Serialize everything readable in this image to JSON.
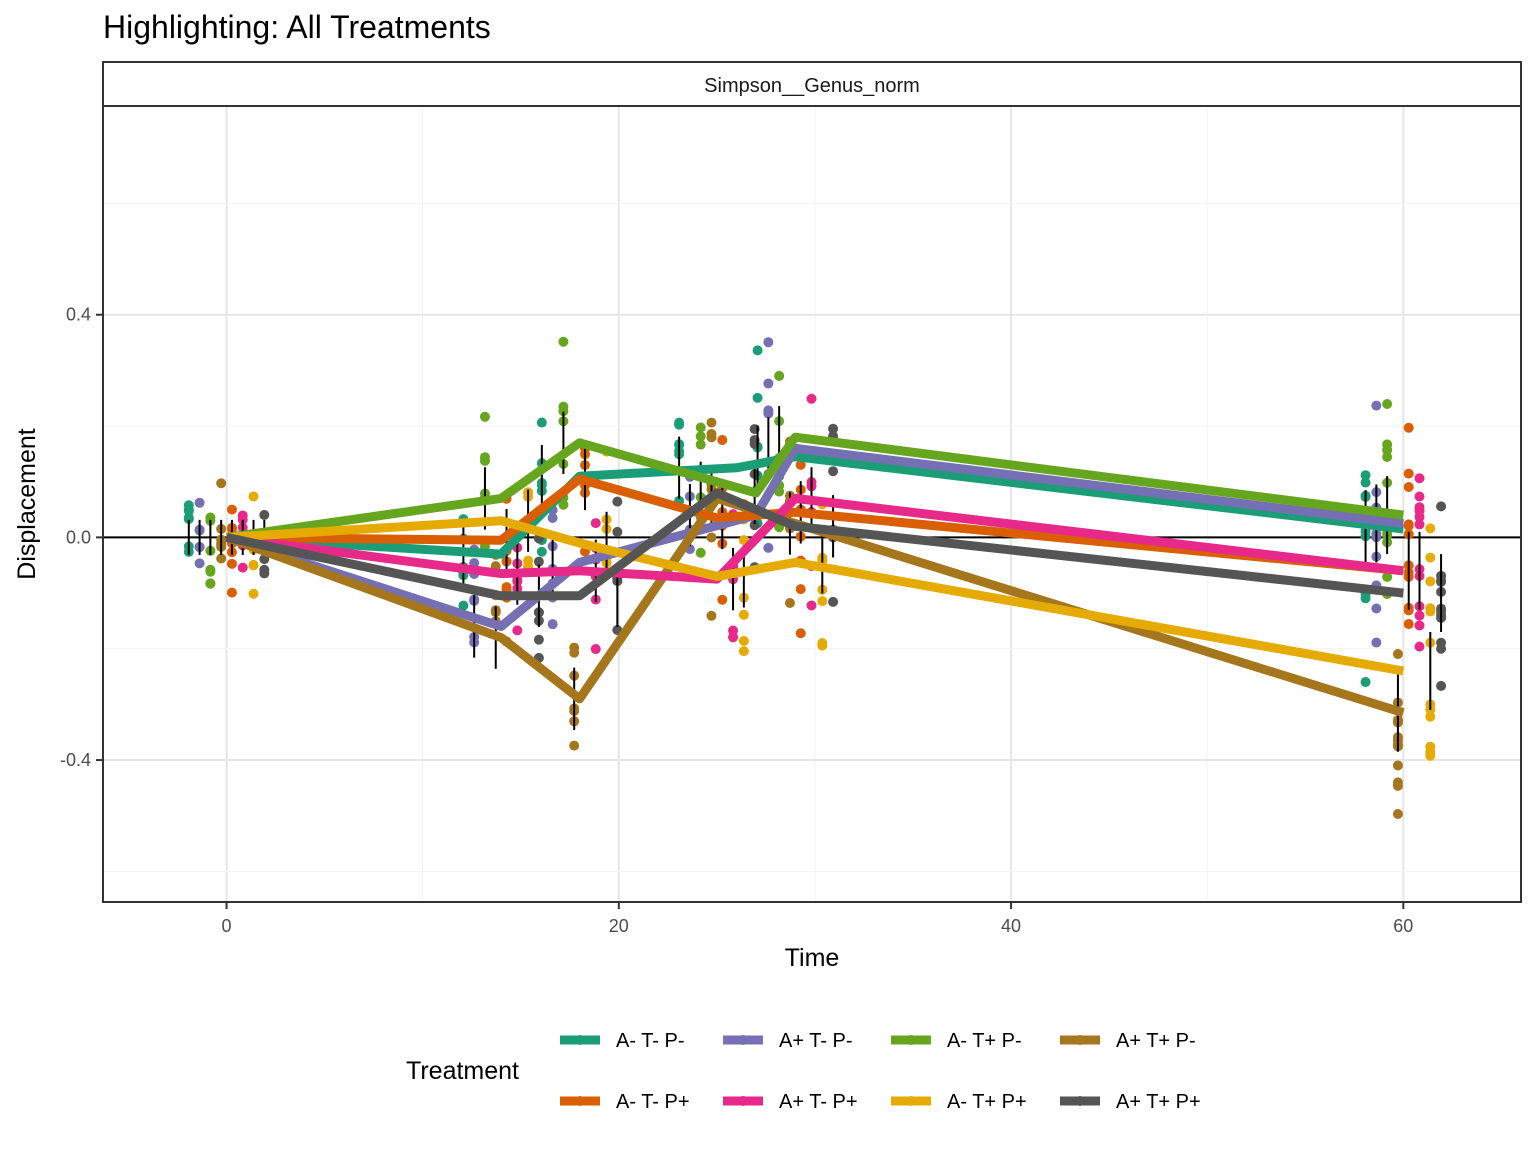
{
  "chart_data": {
    "type": "line",
    "title": "Highlighting: All Treatments",
    "facet_label": "Simpson__Genus_norm",
    "xlabel": "Time",
    "ylabel": "Displacement",
    "xlim": [
      -6.3,
      66
    ],
    "ylim": [
      -0.655,
      0.775
    ],
    "x_ticks": [
      0,
      20,
      40,
      60
    ],
    "x_tick_labels": [
      "0",
      "20",
      "40",
      "60"
    ],
    "y_ticks": [
      -0.4,
      0.0,
      0.4
    ],
    "y_tick_labels": [
      "-0.4",
      "0.0",
      "0.4"
    ],
    "reference_line_y": 0,
    "grid": true,
    "legend_title": "Treatment",
    "legend_position": "bottom",
    "series": [
      {
        "name": "A- T- P-",
        "color": "#1B9E77",
        "x": [
          0,
          14,
          18,
          26,
          29,
          60
        ],
        "y": [
          0.0,
          -0.03,
          0.11,
          0.125,
          0.145,
          0.015
        ]
      },
      {
        "name": "A+ T- P-",
        "color": "#7570B3",
        "x": [
          0,
          14,
          18,
          27,
          29,
          60
        ],
        "y": [
          0.0,
          -0.16,
          -0.045,
          0.04,
          0.16,
          0.025
        ]
      },
      {
        "name": "A- T+ P-",
        "color": "#66A61E",
        "x": [
          0,
          14,
          18,
          27,
          29,
          60
        ],
        "y": [
          0.0,
          0.07,
          0.17,
          0.08,
          0.18,
          0.04
        ]
      },
      {
        "name": "A+ T+ P-",
        "color": "#A6761D",
        "x": [
          0,
          14,
          18,
          25,
          29,
          60
        ],
        "y": [
          0.0,
          -0.18,
          -0.29,
          0.07,
          0.025,
          -0.315
        ]
      },
      {
        "name": "A- T- P+",
        "color": "#D95F02",
        "x": [
          0,
          14,
          18,
          25,
          29,
          60
        ],
        "y": [
          0.0,
          -0.005,
          0.105,
          0.035,
          0.045,
          -0.06
        ]
      },
      {
        "name": "A+ T- P+",
        "color": "#E7298A",
        "x": [
          0,
          14,
          18,
          25,
          29,
          60
        ],
        "y": [
          0.0,
          -0.065,
          -0.06,
          -0.075,
          0.07,
          -0.06
        ]
      },
      {
        "name": "A- T+ P+",
        "color": "#E6AB02",
        "x": [
          0,
          14,
          18,
          25,
          29,
          60
        ],
        "y": [
          0.0,
          0.03,
          -0.01,
          -0.07,
          -0.045,
          -0.24
        ]
      },
      {
        "name": "A+ T+ P+",
        "color": "#555555",
        "x": [
          0,
          14,
          18,
          25,
          29,
          60
        ],
        "y": [
          0.0,
          -0.105,
          -0.105,
          0.08,
          0.02,
          -0.1
        ]
      }
    ]
  }
}
